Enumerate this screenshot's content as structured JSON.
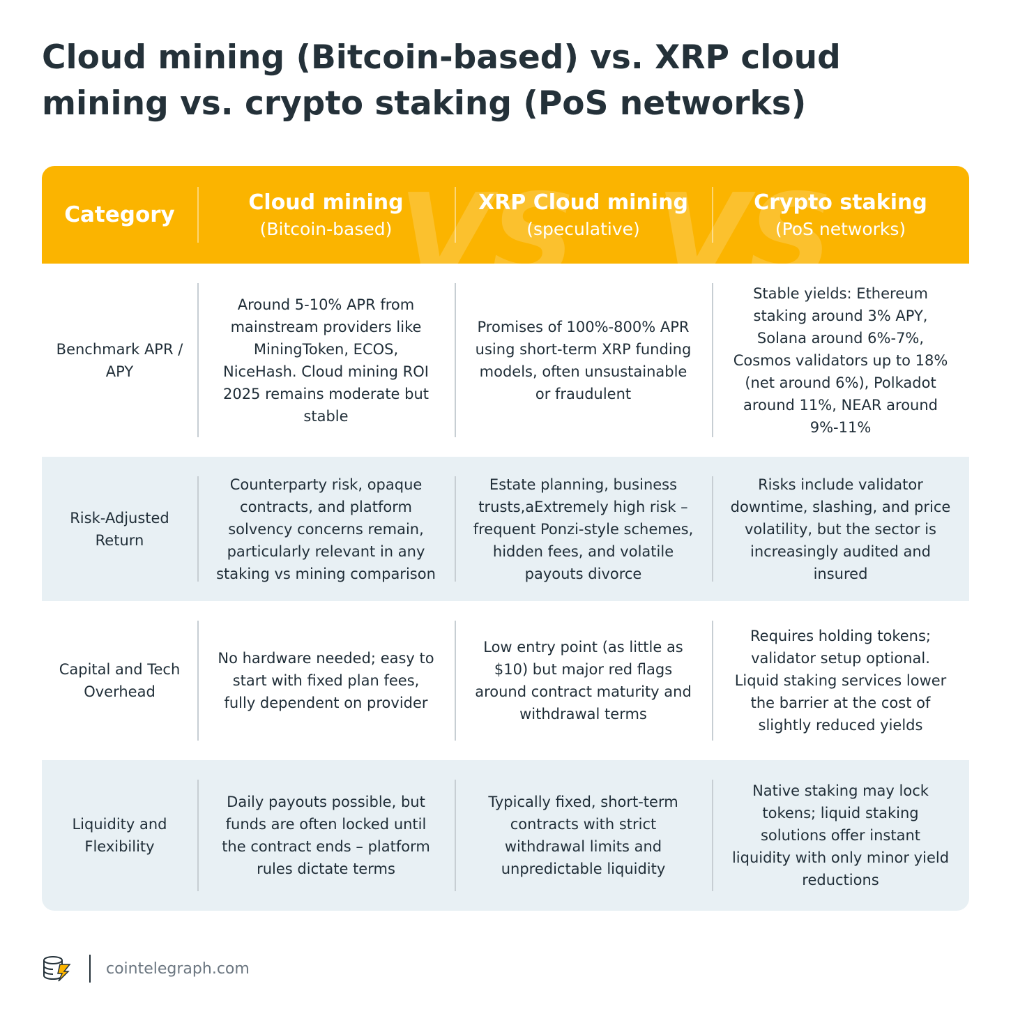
{
  "header": {
    "title": "Cloud mining (Bitcoin-based) vs. XRP cloud mining vs. crypto staking (PoS networks)"
  },
  "table": {
    "columns": [
      {
        "title": "Category"
      },
      {
        "title": "Cloud mining",
        "subtitle": "(Bitcoin-based)"
      },
      {
        "title": "XRP Cloud mining",
        "subtitle": "(speculative)"
      },
      {
        "title": "Crypto staking",
        "subtitle": "(PoS networks)"
      }
    ],
    "vs_marks": [
      "VS",
      "VS"
    ],
    "rows": [
      [
        "Benchmark APR / APY",
        "Around 5-10% APR from mainstream providers like MiningToken, ECOS, NiceHash. Cloud mining ROI 2025 remains moderate but stable",
        "Promises of 100%-800% APR using short-term XRP funding models, often unsustainable or fraudulent",
        "Stable yields: Ethereum staking around 3% APY, Solana around 6%-7%, Cosmos validators up to 18% (net around 6%), Polkadot around 11%, NEAR around 9%-11%"
      ],
      [
        "Risk-Adjusted Return",
        "Counterparty risk, opaque contracts, and platform solvency concerns remain, particularly relevant in any staking vs mining comparison",
        "Estate planning, business trusts,aExtremely high risk – frequent Ponzi-style schemes, hidden fees, and volatile payouts divorce",
        "Risks include validator downtime, slashing, and price volatility, but the sector is increasingly audited and insured"
      ],
      [
        "Capital and Tech Overhead",
        "No hardware needed; easy to start with fixed plan fees, fully dependent on provider",
        "Low entry point (as little as $10) but major red flags around contract maturity and withdrawal terms",
        "Requires holding tokens; validator setup optional. Liquid staking services lower the barrier at the cost of slightly reduced yields"
      ],
      [
        "Liquidity and Flexibility",
        "Daily payouts possible, but funds are often locked until the contract ends – platform rules dictate terms",
        "Typically fixed, short-term contracts with strict withdrawal limits and unpredictable liquidity",
        "Native staking may lock tokens; liquid staking solutions offer instant liquidity with only minor yield reductions"
      ]
    ]
  },
  "footer": {
    "site": "cointelegraph.com"
  }
}
